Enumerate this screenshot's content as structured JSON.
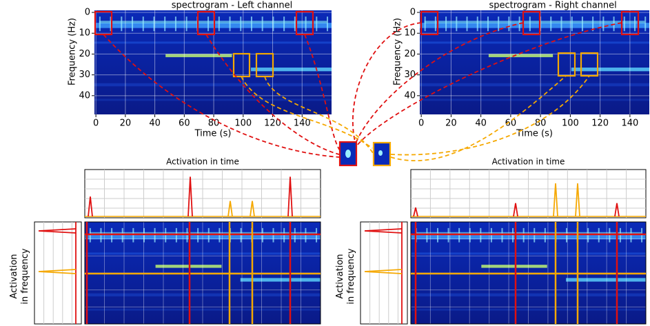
{
  "chart_data": [
    {
      "type": "heatmap",
      "title": "spectrogram - Left channel",
      "x_label": "Time (s)",
      "y_label": "Frequency (Hz)",
      "xlim": [
        -1,
        160
      ],
      "xticks": [
        0,
        20,
        40,
        60,
        80,
        100,
        120,
        140
      ],
      "ylim": [
        49,
        -1
      ],
      "yticks": [
        0,
        10,
        20,
        30,
        40
      ]
    },
    {
      "type": "heatmap",
      "title": "spectrogram - Right channel",
      "x_label": "Time (s)",
      "y_label": "Frequency (Hz)",
      "xlim": [
        -1,
        153
      ],
      "xticks": [
        0,
        20,
        40,
        60,
        80,
        100,
        120,
        140
      ],
      "ylim": [
        49,
        -1
      ],
      "yticks": [
        0,
        10,
        20,
        30,
        40
      ]
    },
    {
      "type": "activation",
      "title": "Activation in time",
      "y_label": [
        "Activation",
        "in frequency"
      ]
    },
    {
      "type": "activation",
      "title": "Activation in time",
      "y_label": [
        "Activation",
        "in frequency"
      ]
    }
  ]
}
